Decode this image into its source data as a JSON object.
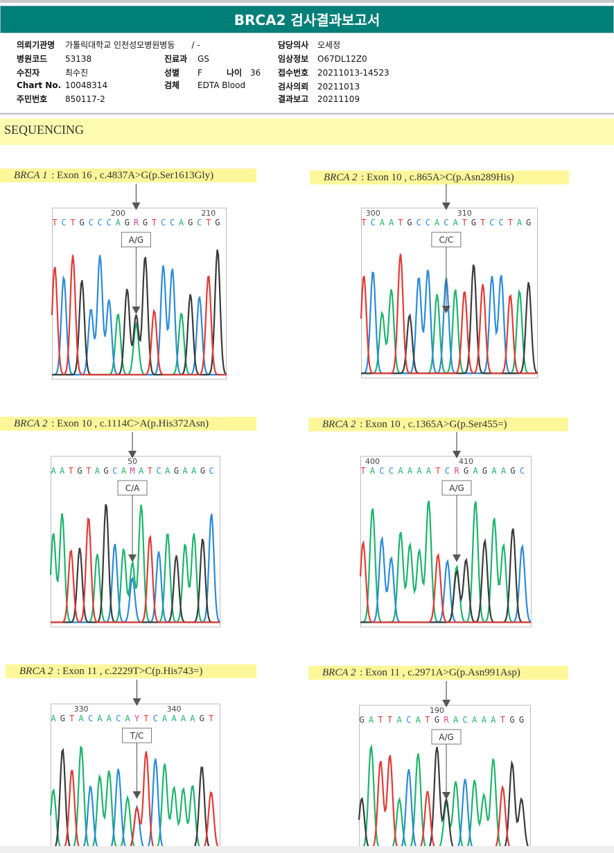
{
  "title": "BRCA2 검사결과보고서",
  "info": {
    "institution": {
      "label": "의뢰기관명",
      "value": "가톨릭대학교 인천성모병원병동",
      "extra": "/ -"
    },
    "hospital_code": {
      "label": "병원코드",
      "value": "53138"
    },
    "patient": {
      "label": "수진자",
      "value": "최수진"
    },
    "chart_no": {
      "label": "Chart No.",
      "value": "10048314"
    },
    "resident_no": {
      "label": "주민번호",
      "value": "850117-2"
    },
    "department": {
      "label": "진료과",
      "value": "GS"
    },
    "sex": {
      "label": "성별",
      "value": "F"
    },
    "age": {
      "label": "나이",
      "value": "36"
    },
    "specimen": {
      "label": "검체",
      "value": "EDTA Blood"
    },
    "doctor": {
      "label": "담당의사",
      "value": "오세정"
    },
    "clinical_info": {
      "label": "임상정보",
      "value": "O67DL12Z0"
    },
    "accession_no": {
      "label": "접수번호",
      "value": "20211013-14523"
    },
    "request_date": {
      "label": "검사의뢰",
      "value": "20211013"
    },
    "report_date": {
      "label": "결과보고",
      "value": "20211109"
    }
  },
  "section": "SEQUENCING",
  "colors": {
    "A": "#1db46c",
    "C": "#2b8bd9",
    "G": "#3a3a3a",
    "T": "#e23a35",
    "ambig": "#e0468c",
    "header": "#007f78"
  },
  "variants": [
    {
      "gene": "BRCA 1",
      "desc": ": Exon 16 , c.4837A>G(p.Ser1613Gly)",
      "seq": "TCTGCCCAGRGTCCAGCTG",
      "variant_index": 9,
      "call": "A/G",
      "ticks": [
        {
          "label": "200",
          "index": 7
        },
        {
          "label": "210",
          "index": 17
        }
      ]
    },
    {
      "gene": "BRCA 2",
      "desc": ": Exon 10 , c.865A>C(p.Asn289His)",
      "seq": "TCAATGCCACATGTCCTAG",
      "variant_index": 9,
      "call": "C/C",
      "ticks": [
        {
          "label": "300",
          "index": 1
        },
        {
          "label": "310",
          "index": 11
        }
      ]
    },
    {
      "gene": "BRCA 2",
      "desc": ": Exon 10 , c.1114C>A(p.His372Asn)",
      "seq": "AATGTAGCAMATCAGAAGC",
      "variant_index": 9,
      "call": "C/A",
      "ticks": [
        {
          "label": "50",
          "index": 9
        }
      ]
    },
    {
      "gene": "BRCA 2",
      "desc": ": Exon 10 , c.1365A>G(p.Ser455=)",
      "seq": "TACCAAAATCRGAGAAGC",
      "variant_index": 10,
      "call": "A/G",
      "ticks": [
        {
          "label": "400",
          "index": 1
        },
        {
          "label": "410",
          "index": 11
        }
      ]
    },
    {
      "gene": "BRCA 2",
      "desc": ": Exon 11 , c.2229T>C(p.His743=)",
      "seq": "AGTACAACAYTCAAAAGT",
      "variant_index": 9,
      "call": "T/C",
      "ticks": [
        {
          "label": "330",
          "index": 3
        },
        {
          "label": "340",
          "index": 13
        }
      ]
    },
    {
      "gene": "BRCA 2",
      "desc": ": Exon 11 , c.2971A>G(p.Asn991Asp)",
      "seq": "GATTACATGRACAAATGG",
      "variant_index": 9,
      "call": "A/G",
      "ticks": [
        {
          "label": "190",
          "index": 8
        }
      ]
    }
  ]
}
